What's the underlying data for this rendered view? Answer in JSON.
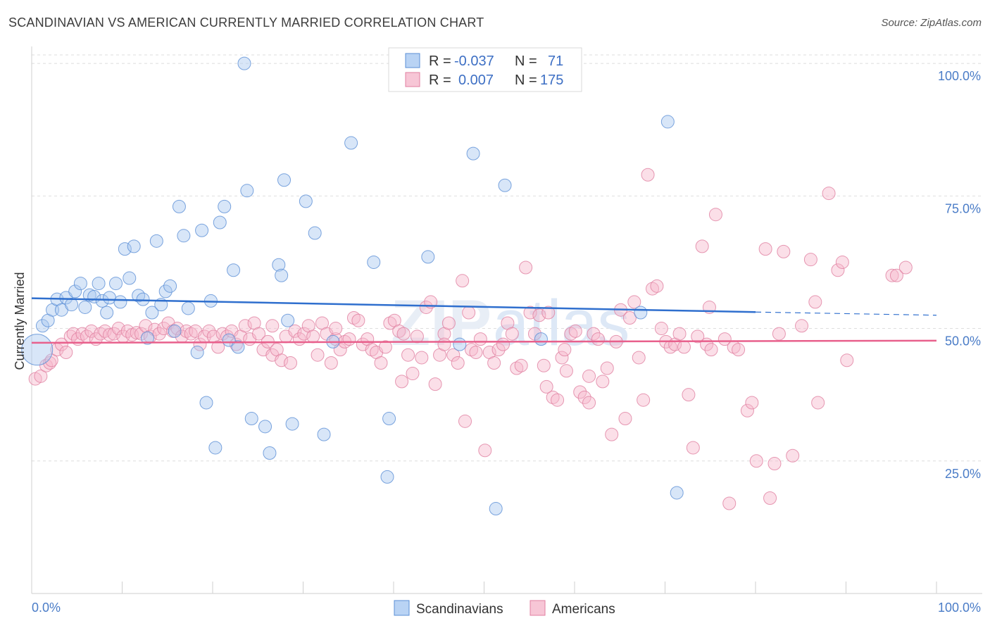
{
  "title": "SCANDINAVIAN VS AMERICAN CURRENTLY MARRIED CORRELATION CHART",
  "source": "Source: ZipAtlas.com",
  "chart_data": {
    "type": "scatter",
    "title": "SCANDINAVIAN VS AMERICAN CURRENTLY MARRIED CORRELATION CHART",
    "xlabel": "",
    "ylabel": "Currently Married",
    "xlim": [
      0,
      100
    ],
    "ylim": [
      0,
      104
    ],
    "x_tick_labels": [
      "0.0%",
      "100.0%"
    ],
    "y_ticks": [
      25,
      50,
      75,
      100
    ],
    "y_tick_labels": [
      "25.0%",
      "50.0%",
      "75.0%",
      "100.0%"
    ],
    "grid": true,
    "legend_position": "top-center",
    "watermark": "ZIPatlas",
    "stats": [
      {
        "r_label": "R =",
        "r": "-0.037",
        "n_label": "N =",
        "n": "71"
      },
      {
        "r_label": "R =",
        "r": "0.007",
        "n_label": "N =",
        "n": "175"
      }
    ],
    "series": [
      {
        "name": "Scandinavians",
        "color": "#a8c8f0",
        "stroke": "#5b8fd6",
        "trend_color": "#2f6fce",
        "trend": {
          "x0": 0,
          "y0": 55.7,
          "x1": 80,
          "y1": 53.1,
          "dash_to": 100,
          "dash_y": 52.5
        },
        "points": [
          [
            0.6,
            46
          ],
          [
            1.2,
            50.5
          ],
          [
            1.8,
            51.5
          ],
          [
            2.3,
            53.5
          ],
          [
            2.8,
            55.5
          ],
          [
            3.3,
            53.5
          ],
          [
            3.8,
            55.8
          ],
          [
            4.4,
            54.5
          ],
          [
            4.8,
            57
          ],
          [
            5.4,
            58.5
          ],
          [
            5.9,
            54
          ],
          [
            6.4,
            56.3
          ],
          [
            6.9,
            56
          ],
          [
            7.4,
            58.5
          ],
          [
            7.8,
            55.2
          ],
          [
            8.3,
            53
          ],
          [
            8.6,
            55.8
          ],
          [
            9.3,
            58.5
          ],
          [
            9.8,
            55
          ],
          [
            10.3,
            65
          ],
          [
            10.8,
            59.5
          ],
          [
            11.3,
            65.5
          ],
          [
            11.8,
            56.2
          ],
          [
            12.3,
            55.5
          ],
          [
            12.8,
            48.2
          ],
          [
            13.3,
            53
          ],
          [
            13.8,
            66.5
          ],
          [
            14.3,
            54.5
          ],
          [
            14.8,
            57
          ],
          [
            15.3,
            58
          ],
          [
            15.8,
            49.5
          ],
          [
            16.3,
            73
          ],
          [
            16.8,
            67.5
          ],
          [
            17.3,
            53.8
          ],
          [
            18.3,
            45.5
          ],
          [
            18.8,
            68.5
          ],
          [
            19.3,
            36
          ],
          [
            19.8,
            55.2
          ],
          [
            20.3,
            27.5
          ],
          [
            20.8,
            70
          ],
          [
            21.3,
            73
          ],
          [
            21.8,
            47.8
          ],
          [
            22.3,
            61
          ],
          [
            22.8,
            46.5
          ],
          [
            23.5,
            100
          ],
          [
            23.8,
            76
          ],
          [
            24.3,
            33
          ],
          [
            25.8,
            31.5
          ],
          [
            26.3,
            26.5
          ],
          [
            27.3,
            62
          ],
          [
            27.6,
            60
          ],
          [
            27.9,
            78
          ],
          [
            28.3,
            51.5
          ],
          [
            28.8,
            32
          ],
          [
            30.3,
            74
          ],
          [
            31.3,
            68
          ],
          [
            32.3,
            30
          ],
          [
            33.3,
            47.5
          ],
          [
            35.3,
            85
          ],
          [
            37.8,
            62.5
          ],
          [
            39.3,
            22
          ],
          [
            39.5,
            33
          ],
          [
            43.8,
            63.5
          ],
          [
            47.3,
            47
          ],
          [
            48.8,
            83
          ],
          [
            51.3,
            16
          ],
          [
            52.3,
            77
          ],
          [
            67.3,
            53
          ],
          [
            70.3,
            89
          ],
          [
            71.3,
            19
          ],
          [
            56.3,
            48
          ]
        ]
      },
      {
        "name": "Americans",
        "color": "#f7b8cc",
        "stroke": "#e07fa0",
        "trend_color": "#e8608c",
        "trend": {
          "x0": 0,
          "y0": 47.3,
          "x1": 100,
          "y1": 47.7
        },
        "points": [
          [
            0.4,
            40.5
          ],
          [
            1.0,
            41
          ],
          [
            1.6,
            43
          ],
          [
            2.0,
            43.5
          ],
          [
            2.2,
            44
          ],
          [
            2.8,
            46
          ],
          [
            3.3,
            47
          ],
          [
            3.8,
            45.5
          ],
          [
            4.3,
            48.5
          ],
          [
            4.6,
            49
          ],
          [
            5.1,
            48
          ],
          [
            5.6,
            49
          ],
          [
            6.1,
            48.5
          ],
          [
            6.6,
            49.5
          ],
          [
            7.1,
            48
          ],
          [
            7.6,
            49
          ],
          [
            8.1,
            49.5
          ],
          [
            8.6,
            48.8
          ],
          [
            9.1,
            49
          ],
          [
            9.6,
            50
          ],
          [
            10.1,
            48.5
          ],
          [
            10.6,
            49.5
          ],
          [
            11.1,
            48.8
          ],
          [
            11.6,
            49.2
          ],
          [
            12.1,
            49
          ],
          [
            12.6,
            50.5
          ],
          [
            13.1,
            48.5
          ],
          [
            13.6,
            49.8
          ],
          [
            14.1,
            49
          ],
          [
            14.6,
            50
          ],
          [
            15.1,
            51
          ],
          [
            15.6,
            49.5
          ],
          [
            16.1,
            50
          ],
          [
            16.6,
            48.5
          ],
          [
            17.1,
            49.5
          ],
          [
            17.6,
            49
          ],
          [
            18.1,
            49.5
          ],
          [
            18.6,
            47
          ],
          [
            19.1,
            48.5
          ],
          [
            19.6,
            49.5
          ],
          [
            20.1,
            48.5
          ],
          [
            20.6,
            46.5
          ],
          [
            21.1,
            49
          ],
          [
            21.6,
            48.5
          ],
          [
            22.1,
            49.5
          ],
          [
            22.6,
            47
          ],
          [
            23.1,
            48.5
          ],
          [
            23.6,
            50.5
          ],
          [
            24.1,
            48
          ],
          [
            24.6,
            51
          ],
          [
            25.1,
            49
          ],
          [
            25.6,
            46
          ],
          [
            26.1,
            47.5
          ],
          [
            26.6,
            45
          ],
          [
            27.1,
            46
          ],
          [
            27.6,
            44
          ],
          [
            28.1,
            48.5
          ],
          [
            28.6,
            43.5
          ],
          [
            29.1,
            49.5
          ],
          [
            29.6,
            48
          ],
          [
            30.1,
            49
          ],
          [
            30.6,
            50.5
          ],
          [
            31.1,
            48.5
          ],
          [
            31.6,
            45
          ],
          [
            32.1,
            51
          ],
          [
            32.6,
            49
          ],
          [
            33.1,
            43.5
          ],
          [
            33.6,
            48
          ],
          [
            34.1,
            46
          ],
          [
            34.6,
            47.5
          ],
          [
            35.1,
            48
          ],
          [
            35.6,
            52
          ],
          [
            36.1,
            51.5
          ],
          [
            36.6,
            47
          ],
          [
            37.1,
            48
          ],
          [
            37.6,
            46
          ],
          [
            38.1,
            45.5
          ],
          [
            38.6,
            43.5
          ],
          [
            39.1,
            46.5
          ],
          [
            39.6,
            51
          ],
          [
            40.1,
            51.5
          ],
          [
            40.6,
            49.5
          ],
          [
            41.1,
            49
          ],
          [
            41.6,
            45
          ],
          [
            42.1,
            41.5
          ],
          [
            42.6,
            48.5
          ],
          [
            43.1,
            44.5
          ],
          [
            43.6,
            54
          ],
          [
            44.1,
            55
          ],
          [
            44.6,
            39.5
          ],
          [
            45.1,
            45
          ],
          [
            45.6,
            49
          ],
          [
            46.1,
            51
          ],
          [
            46.6,
            45
          ],
          [
            47.1,
            43.5
          ],
          [
            47.6,
            59
          ],
          [
            47.9,
            32.5
          ],
          [
            48.3,
            53
          ],
          [
            48.6,
            46
          ],
          [
            49.1,
            45.5
          ],
          [
            49.6,
            48
          ],
          [
            50.1,
            27
          ],
          [
            50.6,
            45.5
          ],
          [
            51.1,
            43.5
          ],
          [
            51.6,
            46
          ],
          [
            52.1,
            47
          ],
          [
            52.6,
            51
          ],
          [
            53.1,
            49
          ],
          [
            53.6,
            42.5
          ],
          [
            54.1,
            43
          ],
          [
            54.6,
            61.5
          ],
          [
            55.1,
            53
          ],
          [
            55.6,
            49
          ],
          [
            56.1,
            52.5
          ],
          [
            56.6,
            43
          ],
          [
            57.1,
            53
          ],
          [
            57.6,
            37
          ],
          [
            58.1,
            36.5
          ],
          [
            58.6,
            44.5
          ],
          [
            59.1,
            42
          ],
          [
            59.6,
            49
          ],
          [
            60.1,
            49.5
          ],
          [
            60.6,
            38
          ],
          [
            61.1,
            37
          ],
          [
            61.6,
            36
          ],
          [
            62.1,
            49
          ],
          [
            62.6,
            48
          ],
          [
            63.1,
            40
          ],
          [
            63.6,
            42.5
          ],
          [
            64.1,
            30
          ],
          [
            64.6,
            47.5
          ],
          [
            65.1,
            53.5
          ],
          [
            65.6,
            33
          ],
          [
            66.1,
            52
          ],
          [
            66.6,
            55
          ],
          [
            67.1,
            44.5
          ],
          [
            67.6,
            36.5
          ],
          [
            68.1,
            79
          ],
          [
            68.6,
            57.5
          ],
          [
            69.1,
            58
          ],
          [
            70.1,
            47.5
          ],
          [
            70.6,
            46.5
          ],
          [
            71.1,
            47
          ],
          [
            71.6,
            49
          ],
          [
            72.1,
            46.5
          ],
          [
            72.6,
            37.5
          ],
          [
            73.1,
            27.5
          ],
          [
            73.6,
            48.5
          ],
          [
            74.1,
            65.5
          ],
          [
            74.6,
            47
          ],
          [
            75.1,
            46
          ],
          [
            75.6,
            71.5
          ],
          [
            76.6,
            48
          ],
          [
            77.1,
            17
          ],
          [
            77.6,
            46.5
          ],
          [
            78.1,
            46
          ],
          [
            79.1,
            34.5
          ],
          [
            79.6,
            36
          ],
          [
            80.1,
            25
          ],
          [
            81.1,
            65
          ],
          [
            81.6,
            18
          ],
          [
            82.1,
            24.5
          ],
          [
            82.6,
            49
          ],
          [
            83.1,
            64.5
          ],
          [
            84.1,
            26
          ],
          [
            85.1,
            50.5
          ],
          [
            86.1,
            63
          ],
          [
            86.6,
            55
          ],
          [
            86.9,
            36
          ],
          [
            88.1,
            75.5
          ],
          [
            89.1,
            61
          ],
          [
            89.6,
            62.5
          ],
          [
            90.1,
            44
          ],
          [
            95.1,
            60
          ],
          [
            95.6,
            60
          ],
          [
            96.6,
            61.5
          ],
          [
            69.6,
            50
          ],
          [
            74.9,
            54
          ],
          [
            45.6,
            47
          ],
          [
            56.9,
            39
          ],
          [
            61.6,
            41
          ],
          [
            33.6,
            50
          ],
          [
            26.6,
            50.5
          ],
          [
            40.9,
            40
          ],
          [
            58.9,
            46
          ]
        ]
      }
    ]
  }
}
